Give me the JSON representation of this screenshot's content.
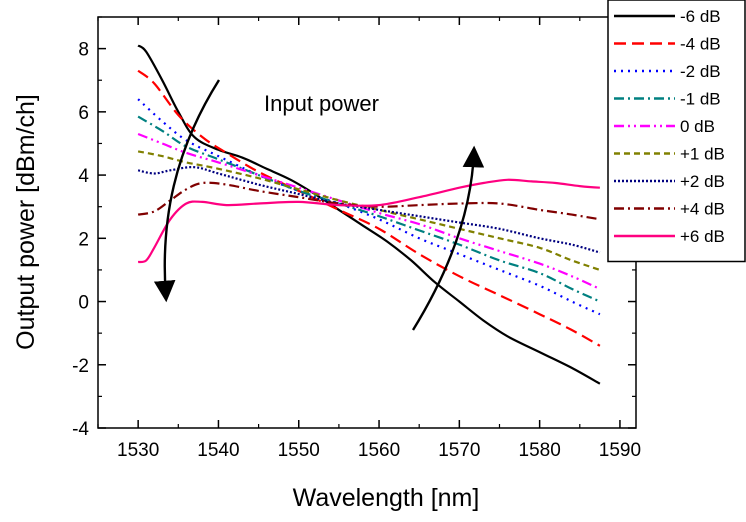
{
  "chart_data": {
    "type": "line",
    "title": "",
    "xlabel": "Wavelength [nm]",
    "ylabel": "Output power [dBm/ch]",
    "xlim": [
      1525,
      1592
    ],
    "ylim": [
      -4,
      9
    ],
    "xticks": [
      1530,
      1540,
      1550,
      1560,
      1570,
      1580,
      1590
    ],
    "yticks": [
      -4,
      -2,
      0,
      2,
      4,
      6,
      8
    ],
    "grid": false,
    "legend_position": "top-right, outside plot",
    "annotation": "Input power",
    "series": [
      {
        "name": "-6 dB",
        "color": "#000000",
        "dash": "solid",
        "x": [
          1530,
          1531,
          1533,
          1535,
          1537,
          1540,
          1543,
          1546,
          1549,
          1552,
          1555,
          1558,
          1561,
          1564,
          1567,
          1570,
          1573,
          1576,
          1580,
          1584,
          1587.5
        ],
        "y": [
          8.1,
          7.9,
          7.0,
          6.0,
          5.2,
          4.8,
          4.55,
          4.2,
          3.85,
          3.4,
          2.9,
          2.4,
          1.9,
          1.3,
          0.6,
          0.0,
          -0.6,
          -1.1,
          -1.6,
          -2.1,
          -2.6
        ]
      },
      {
        "name": "-4 dB",
        "color": "#ff0000",
        "dash": "dash",
        "x": [
          1530,
          1532,
          1535,
          1538,
          1541,
          1545,
          1550,
          1555,
          1560,
          1565,
          1570,
          1575,
          1580,
          1584,
          1587.5
        ],
        "y": [
          7.3,
          6.9,
          5.9,
          5.2,
          4.7,
          4.1,
          3.5,
          2.9,
          2.3,
          1.5,
          0.8,
          0.2,
          -0.4,
          -0.9,
          -1.4
        ]
      },
      {
        "name": "-2 dB",
        "color": "#0000ff",
        "dash": "dot",
        "x": [
          1530,
          1533,
          1536,
          1540,
          1545,
          1550,
          1555,
          1560,
          1565,
          1570,
          1575,
          1580,
          1584,
          1587.5
        ],
        "y": [
          6.4,
          5.7,
          5.1,
          4.6,
          4.0,
          3.5,
          3.1,
          2.6,
          2.0,
          1.5,
          1.0,
          0.5,
          0.0,
          -0.4
        ]
      },
      {
        "name": "-1 dB",
        "color": "#008080",
        "dash": "dashdot",
        "x": [
          1530,
          1533,
          1536,
          1540,
          1545,
          1550,
          1555,
          1560,
          1565,
          1570,
          1575,
          1580,
          1584,
          1587.5
        ],
        "y": [
          5.85,
          5.4,
          4.9,
          4.5,
          4.0,
          3.5,
          3.1,
          2.7,
          2.25,
          1.8,
          1.3,
          0.9,
          0.4,
          0.0
        ]
      },
      {
        "name": "0 dB",
        "color": "#ff00ff",
        "dash": "dashdotdot",
        "x": [
          1530,
          1533,
          1536,
          1540,
          1545,
          1550,
          1555,
          1560,
          1565,
          1570,
          1575,
          1580,
          1584,
          1587.5
        ],
        "y": [
          5.3,
          5.0,
          4.7,
          4.4,
          4.0,
          3.6,
          3.2,
          2.8,
          2.45,
          2.0,
          1.6,
          1.2,
          0.8,
          0.4
        ]
      },
      {
        "name": "+1 dB",
        "color": "#808000",
        "dash": "shortdash",
        "x": [
          1530,
          1533,
          1536,
          1540,
          1545,
          1550,
          1555,
          1560,
          1565,
          1570,
          1575,
          1580,
          1584,
          1587.5
        ],
        "y": [
          4.75,
          4.6,
          4.4,
          4.2,
          3.9,
          3.55,
          3.2,
          2.9,
          2.6,
          2.3,
          2.0,
          1.7,
          1.3,
          1.0
        ]
      },
      {
        "name": "+2 dB",
        "color": "#000080",
        "dash": "shortdot",
        "x": [
          1530,
          1532,
          1534,
          1537,
          1540,
          1545,
          1550,
          1555,
          1560,
          1565,
          1570,
          1575,
          1580,
          1584,
          1587.5
        ],
        "y": [
          4.15,
          4.05,
          4.15,
          4.25,
          4.05,
          3.7,
          3.4,
          3.1,
          2.9,
          2.7,
          2.5,
          2.3,
          2.0,
          1.8,
          1.55
        ]
      },
      {
        "name": "+4 dB",
        "color": "#800000",
        "dash": "dashdot",
        "x": [
          1530,
          1532,
          1534,
          1536,
          1538,
          1541,
          1545,
          1550,
          1555,
          1560,
          1565,
          1570,
          1575,
          1580,
          1584,
          1587.5
        ],
        "y": [
          2.75,
          2.85,
          3.2,
          3.55,
          3.75,
          3.7,
          3.5,
          3.3,
          3.1,
          3.0,
          3.05,
          3.1,
          3.1,
          2.9,
          2.75,
          2.6
        ]
      },
      {
        "name": "+6 dB",
        "color": "#ff0080",
        "dash": "solid",
        "x": [
          1530,
          1531,
          1532,
          1534,
          1536,
          1538,
          1541,
          1545,
          1550,
          1555,
          1560,
          1565,
          1570,
          1573,
          1576,
          1579,
          1582,
          1585,
          1587.5
        ],
        "y": [
          1.25,
          1.3,
          1.7,
          2.6,
          3.1,
          3.15,
          3.05,
          3.1,
          3.15,
          3.05,
          3.05,
          3.3,
          3.6,
          3.75,
          3.85,
          3.8,
          3.75,
          3.65,
          3.6
        ]
      }
    ]
  }
}
